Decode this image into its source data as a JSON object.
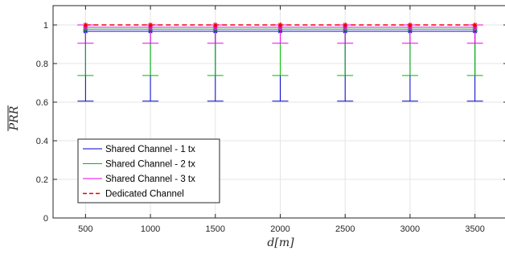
{
  "chart_data": {
    "type": "line",
    "title": "",
    "xlabel": "d[m]",
    "ylabel": "PRR (overlined)",
    "xlim": [
      250,
      3750
    ],
    "ylim": [
      0,
      1.1
    ],
    "x_ticks": [
      "500",
      "1000",
      "1500",
      "2000",
      "2500",
      "3000",
      "3500"
    ],
    "y_ticks": [
      "0",
      "0.2",
      "0.4",
      "0.6",
      "0.8",
      "1"
    ],
    "x": [
      500,
      1000,
      1500,
      2000,
      2500,
      3000,
      3500
    ],
    "grid": true,
    "legend_position": "lower-left",
    "series": [
      {
        "name": "Shared Channel - 1 tx",
        "color": "#0000cc",
        "style": "solid",
        "marker": "star",
        "values": [
          0.967,
          0.967,
          0.967,
          0.967,
          0.967,
          0.967,
          0.967
        ],
        "err_low": [
          0.605,
          0.605,
          0.605,
          0.605,
          0.605,
          0.605,
          0.605
        ],
        "err_high": [
          1.0,
          1.0,
          1.0,
          1.0,
          1.0,
          1.0,
          1.0
        ]
      },
      {
        "name": "Shared Channel - 2 tx",
        "color": "#00bb00",
        "style": "solid",
        "marker": "star",
        "values": [
          0.978,
          0.978,
          0.978,
          0.978,
          0.978,
          0.978,
          0.978
        ],
        "err_low": [
          0.738,
          0.738,
          0.738,
          0.738,
          0.738,
          0.738,
          0.738
        ],
        "err_high": [
          1.0,
          1.0,
          1.0,
          1.0,
          1.0,
          1.0,
          1.0
        ]
      },
      {
        "name": "Shared Channel - 3 tx",
        "color": "#ee00ee",
        "style": "solid",
        "marker": "star",
        "values": [
          0.988,
          0.988,
          0.988,
          0.988,
          0.988,
          0.988,
          0.988
        ],
        "err_low": [
          0.905,
          0.905,
          0.905,
          0.905,
          0.905,
          0.905,
          0.905
        ],
        "err_high": [
          1.0,
          1.0,
          1.0,
          1.0,
          1.0,
          1.0,
          1.0
        ]
      },
      {
        "name": "Dedicated Channel",
        "color": "#ee0000",
        "style": "dashed",
        "marker": "star",
        "values": [
          1.0,
          1.0,
          1.0,
          1.0,
          1.0,
          1.0,
          1.0
        ]
      }
    ]
  }
}
